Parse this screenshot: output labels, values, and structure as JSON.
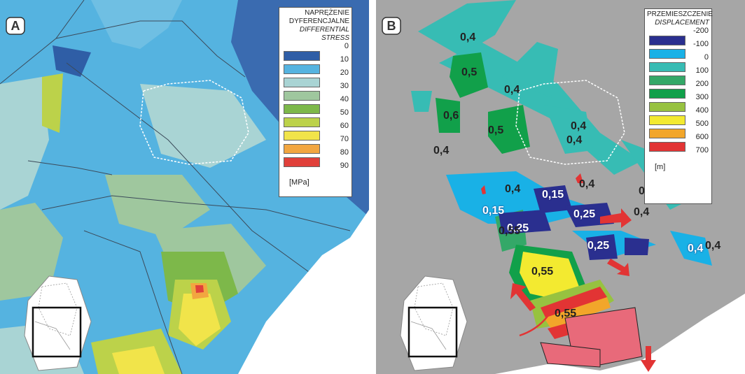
{
  "panel_a": {
    "letter": "A",
    "legend": {
      "title_line1": "NAPRĘŻENIE",
      "title_line2": "DYFERENCJALNE",
      "title_line3": "DIFFERENTIAL",
      "title_line4": "STRESS",
      "unit": "[MPa]",
      "items": [
        {
          "label": "0",
          "color": "#2f5ea6"
        },
        {
          "label": "10",
          "color": "#55b3e0"
        },
        {
          "label": "20",
          "color": "#a9d4d4"
        },
        {
          "label": "30",
          "color": "#9fc79e"
        },
        {
          "label": "40",
          "color": "#7db84a"
        },
        {
          "label": "50",
          "color": "#bcd24a"
        },
        {
          "label": "60",
          "color": "#f1e44a"
        },
        {
          "label": "70",
          "color": "#f2a640"
        },
        {
          "label": "80",
          "color": "#e0403a"
        },
        {
          "label": "90",
          "color": ""
        }
      ]
    }
  },
  "panel_b": {
    "letter": "B",
    "legend": {
      "title_line1": "PRZEMIESZCZENIE",
      "title_line2": "DISPLACEMENT",
      "unit": "[m]",
      "items": [
        {
          "label": "-200",
          "color": "#2a2f8f"
        },
        {
          "label": "-100",
          "color": "#19b1e6"
        },
        {
          "label": "0",
          "color": "#37bcb4"
        },
        {
          "label": "100",
          "color": "#34a868"
        },
        {
          "label": "200",
          "color": "#11a04a"
        },
        {
          "label": "300",
          "color": "#97c240"
        },
        {
          "label": "400",
          "color": "#f3ea30"
        },
        {
          "label": "500",
          "color": "#f2a62a"
        },
        {
          "label": "600",
          "color": "#e23434"
        },
        {
          "label": "700",
          "color": ""
        }
      ]
    },
    "labels": [
      "0,4",
      "0,5",
      "0,4",
      "0,6",
      "0,5",
      "0,4",
      "0,4",
      "0,4",
      "0,4",
      "0,4",
      "0,4",
      "0,4",
      "0,15",
      "0,15",
      "0,25",
      "0,25",
      "0,55",
      "0,25",
      "0,4",
      "0,4",
      "0,55",
      "0,55"
    ]
  }
}
